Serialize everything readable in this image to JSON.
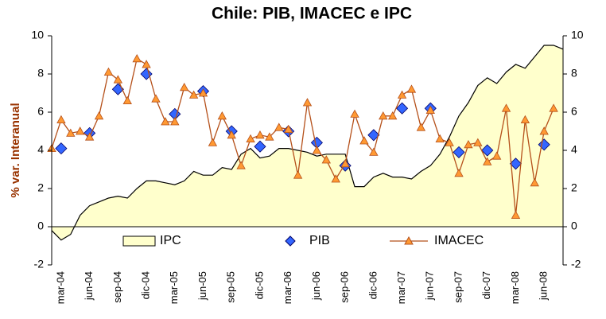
{
  "chart_data": {
    "type": "line",
    "title": "Chile: PIB, IMACEC e IPC",
    "y_label": "% var. Interanual",
    "categories": [
      null,
      "mar-04",
      null,
      null,
      "jun-04",
      null,
      null,
      "sep-04",
      null,
      null,
      "dic-04",
      null,
      null,
      "mar-05",
      null,
      null,
      "jun-05",
      null,
      null,
      "sep-05",
      null,
      null,
      "dic-05",
      null,
      null,
      "mar-06",
      null,
      null,
      "jun-06",
      null,
      null,
      "sep-06",
      null,
      null,
      "dic-06",
      null,
      null,
      "mar-07",
      null,
      null,
      "jun-07",
      null,
      null,
      "sep-07",
      null,
      null,
      "dic-07",
      null,
      null,
      "mar-08",
      null,
      null,
      "jun-08",
      null,
      null
    ],
    "series": [
      {
        "name": "IPC",
        "kind": "area",
        "color": "#ffffcc",
        "values": [
          -0.2,
          -0.7,
          -0.4,
          0.6,
          1.1,
          1.3,
          1.5,
          1.6,
          1.5,
          2.0,
          2.4,
          2.4,
          2.3,
          2.2,
          2.4,
          2.9,
          2.7,
          2.7,
          3.1,
          3.0,
          3.8,
          4.1,
          3.6,
          3.7,
          4.1,
          4.1,
          4.0,
          3.9,
          3.7,
          3.8,
          3.8,
          3.8,
          2.1,
          2.1,
          2.6,
          2.8,
          2.6,
          2.6,
          2.5,
          2.9,
          3.2,
          3.8,
          4.7,
          5.8,
          6.5,
          7.4,
          7.8,
          7.5,
          8.1,
          8.5,
          8.3,
          8.9,
          9.5,
          9.5,
          9.3
        ]
      },
      {
        "name": "PIB",
        "kind": "marker",
        "color": "#3366ff",
        "values": [
          null,
          4.1,
          null,
          null,
          4.9,
          null,
          null,
          7.2,
          null,
          null,
          8.0,
          null,
          null,
          5.9,
          null,
          null,
          7.1,
          null,
          null,
          5.0,
          null,
          null,
          4.2,
          null,
          null,
          5.0,
          null,
          null,
          4.4,
          null,
          null,
          3.2,
          null,
          null,
          4.8,
          null,
          null,
          6.2,
          null,
          null,
          6.2,
          null,
          null,
          3.9,
          null,
          null,
          4.0,
          null,
          null,
          3.3,
          null,
          null,
          4.3,
          null,
          null
        ]
      },
      {
        "name": "IMACEC",
        "kind": "line",
        "color": "#b5501a",
        "marker_color": "#ff9933",
        "values": [
          4.1,
          5.6,
          4.9,
          5.0,
          4.7,
          5.8,
          8.1,
          7.7,
          6.6,
          8.8,
          8.5,
          6.7,
          5.5,
          5.5,
          7.3,
          6.9,
          7.0,
          4.4,
          5.8,
          4.8,
          3.2,
          4.6,
          4.8,
          4.7,
          5.2,
          5.1,
          2.7,
          6.5,
          4.0,
          3.5,
          2.5,
          3.3,
          5.9,
          4.5,
          3.9,
          5.8,
          5.8,
          6.9,
          7.2,
          5.2,
          6.1,
          4.6,
          4.4,
          2.8,
          4.3,
          4.4,
          3.4,
          3.7,
          6.2,
          0.6,
          5.6,
          2.3,
          5.0,
          6.2,
          null
        ]
      }
    ],
    "ylim": [
      -2,
      10
    ],
    "yticks": [
      -2,
      0,
      2,
      4,
      6,
      8,
      10
    ],
    "y2lim": [
      -2,
      10
    ],
    "y2ticks": [
      -2,
      0,
      2,
      4,
      6,
      8,
      10
    ],
    "axis_label_color": "#993300",
    "grid": false,
    "legend": "bottom"
  }
}
